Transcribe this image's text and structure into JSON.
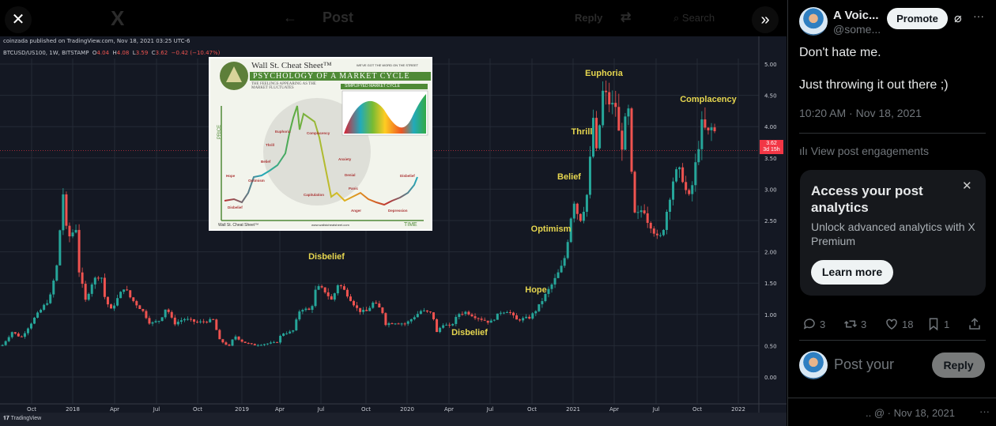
{
  "topbar": {
    "close_icon": "x-close-icon",
    "logo": "X",
    "back_icon": "arrow-left-icon",
    "title": "Post",
    "reply_label": "Reply",
    "search_placeholder": "Search",
    "expand_icon": "chevrons-right-icon"
  },
  "tradingview": {
    "published": "coinzada published on TradingView.com, Nov 18, 2021 03:25 UTC-6",
    "symbol": "BTCUSD/US100, 1W, BITSTAMP",
    "o_label": "O",
    "o": "4.04",
    "h_label": "H",
    "h": "4.08",
    "l_label": "L",
    "l": "3.59",
    "c_label": "C",
    "c": "3.62",
    "change": "−0.42 (−10.47%)",
    "price_tag": "3.62",
    "countdown": "3d 15h",
    "brand": "TradingView"
  },
  "inset": {
    "brand": "Wall St. Cheat Sheet™",
    "tagline": "WE'VE GOT THE WORD ON THE STREET",
    "title": "PSYCHOLOGY OF A MARKET CYCLE",
    "subtitle": "THE FEELINGS APPEARING AS THE MARKET FLUCTUATES",
    "simplified": "SIMPLIFYED MARKET CYCLE",
    "price_axis": "PRICE",
    "time_axis": "TIME",
    "url": "www.wallstcheatsheet.com",
    "stages": [
      "Disbelief",
      "Hope",
      "Optimism",
      "Belief",
      "Thrill",
      "Euphoria",
      "Complacency",
      "Anxiety",
      "Denial",
      "Panic",
      "Capitulation",
      "Anger",
      "Depression",
      "Disbelief"
    ]
  },
  "chart_data": {
    "type": "candlestick",
    "title": "",
    "symbol": "BTCUSD/US100",
    "interval": "1W",
    "ylim": [
      -0.3,
      5.2
    ],
    "yticks": [
      "5.00",
      "4.50",
      "4.00",
      "3.50",
      "3.00",
      "2.50",
      "2.00",
      "1.50",
      "1.00",
      "0.50",
      "0.00"
    ],
    "xticks": [
      "Oct",
      "2018",
      "Apr",
      "Jul",
      "Oct",
      "2019",
      "Apr",
      "Jul",
      "Oct",
      "2020",
      "Apr",
      "Jul",
      "Oct",
      "2021",
      "Apr",
      "Jul",
      "Oct",
      "2022"
    ],
    "grid": true,
    "colors": {
      "up": "#26a69a",
      "down": "#ef5350",
      "annotation": "#e6d64f"
    },
    "last_price": 3.62,
    "closes": [
      [
        "2017-07-31",
        0.51
      ],
      [
        "2017-08-21",
        0.72
      ],
      [
        "2017-09-10",
        0.63
      ],
      [
        "2017-10-08",
        0.93
      ],
      [
        "2017-11-12",
        1.26
      ],
      [
        "2017-11-27",
        1.77
      ],
      [
        "2017-12-11",
        2.93
      ],
      [
        "2017-12-20",
        2.2
      ],
      [
        "2018-01-10",
        2.4
      ],
      [
        "2018-01-15",
        1.69
      ],
      [
        "2018-01-29",
        1.22
      ],
      [
        "2018-02-13",
        1.52
      ],
      [
        "2018-03-04",
        1.67
      ],
      [
        "2018-03-08",
        1.35
      ],
      [
        "2018-03-25",
        1.06
      ],
      [
        "2018-04-24",
        1.44
      ],
      [
        "2018-05-08",
        1.26
      ],
      [
        "2018-06-03",
        1.06
      ],
      [
        "2018-06-20",
        0.85
      ],
      [
        "2018-07-12",
        0.91
      ],
      [
        "2018-07-25",
        1.12
      ],
      [
        "2018-08-11",
        0.85
      ],
      [
        "2018-09-02",
        0.93
      ],
      [
        "2018-10-02",
        0.87
      ],
      [
        "2018-11-05",
        0.91
      ],
      [
        "2018-11-19",
        0.59
      ],
      [
        "2018-12-10",
        0.49
      ],
      [
        "2018-12-22",
        0.66
      ],
      [
        "2019-01-09",
        0.56
      ],
      [
        "2019-01-31",
        0.51
      ],
      [
        "2019-03-24",
        0.55
      ],
      [
        "2019-04-05",
        0.7
      ],
      [
        "2019-04-28",
        0.72
      ],
      [
        "2019-05-15",
        1.1
      ],
      [
        "2019-06-07",
        1.06
      ],
      [
        "2019-06-19",
        1.44
      ],
      [
        "2019-07-06",
        1.39
      ],
      [
        "2019-07-23",
        1.22
      ],
      [
        "2019-08-06",
        1.5
      ],
      [
        "2019-08-27",
        1.31
      ],
      [
        "2019-09-19",
        1.06
      ],
      [
        "2019-10-06",
        1.04
      ],
      [
        "2019-10-22",
        1.19
      ],
      [
        "2019-11-10",
        1.06
      ],
      [
        "2019-11-18",
        0.85
      ],
      [
        "2019-12-09",
        0.87
      ],
      [
        "2020-01-01",
        0.85
      ],
      [
        "2020-02-04",
        1.06
      ],
      [
        "2020-02-29",
        1.01
      ],
      [
        "2020-03-08",
        0.7
      ],
      [
        "2020-03-22",
        0.85
      ],
      [
        "2020-04-08",
        0.8
      ],
      [
        "2020-04-26",
        1.01
      ],
      [
        "2020-05-13",
        1.04
      ],
      [
        "2020-05-30",
        0.97
      ],
      [
        "2020-07-04",
        0.87
      ],
      [
        "2020-07-27",
        1.04
      ],
      [
        "2020-08-13",
        1.06
      ],
      [
        "2020-08-30",
        0.91
      ],
      [
        "2020-09-29",
        0.95
      ],
      [
        "2020-10-16",
        1.1
      ],
      [
        "2020-11-02",
        1.31
      ],
      [
        "2020-11-20",
        1.52
      ],
      [
        "2020-12-12",
        1.82
      ],
      [
        "2020-12-24",
        2.32
      ],
      [
        "2021-01-02",
        2.87
      ],
      [
        "2021-01-16",
        2.49
      ],
      [
        "2021-01-31",
        2.83
      ],
      [
        "2021-02-09",
        3.54
      ],
      [
        "2021-02-14",
        4.22
      ],
      [
        "2021-02-23",
        3.5
      ],
      [
        "2021-03-07",
        4.55
      ],
      [
        "2021-03-17",
        4.47
      ],
      [
        "2021-03-26",
        4.32
      ],
      [
        "2021-04-07",
        4.34
      ],
      [
        "2021-04-16",
        3.54
      ],
      [
        "2021-04-25",
        4.04
      ],
      [
        "2021-05-03",
        4.23
      ],
      [
        "2021-05-08",
        3.46
      ],
      [
        "2021-05-15",
        2.59
      ],
      [
        "2021-05-29",
        2.59
      ],
      [
        "2021-06-03",
        2.78
      ],
      [
        "2021-06-12",
        2.53
      ],
      [
        "2021-06-24",
        2.4
      ],
      [
        "2021-07-08",
        2.17
      ],
      [
        "2021-07-17",
        2.32
      ],
      [
        "2021-07-24",
        2.58
      ],
      [
        "2021-08-01",
        2.87
      ],
      [
        "2021-08-12",
        3.25
      ],
      [
        "2021-08-27",
        3.28
      ],
      [
        "2021-09-05",
        2.99
      ],
      [
        "2021-09-15",
        2.83
      ],
      [
        "2021-09-24",
        3.25
      ],
      [
        "2021-10-03",
        3.66
      ],
      [
        "2021-10-10",
        4.04
      ],
      [
        "2021-10-24",
        3.88
      ],
      [
        "2021-11-06",
        4.03
      ],
      [
        "2021-11-13",
        3.62
      ]
    ],
    "annotations": [
      "Disbelief",
      "Disbelief",
      "Hope",
      "Optimism",
      "Belief",
      "Thrill",
      "Euphoria",
      "Complacency"
    ]
  },
  "post": {
    "display_name": "A Voic...",
    "handle": "@some...",
    "promote_label": "Promote",
    "line1": "Don't hate me.",
    "line2": "Just throwing it out there ;)",
    "timestamp": "10:20 AM · Nov 18, 2021",
    "engagements": "View post engagements",
    "analytics_title": "Access your post analytics",
    "analytics_text": "Unlock advanced analytics with X Premium",
    "learn_more": "Learn more",
    "replies": "3",
    "reposts": "3",
    "likes": "18",
    "bookmarks": "1",
    "reply_placeholder": "Post your",
    "reply_button": "Reply",
    "next_meta": ".. @ · Nov 18, 2021",
    "more": "···"
  }
}
